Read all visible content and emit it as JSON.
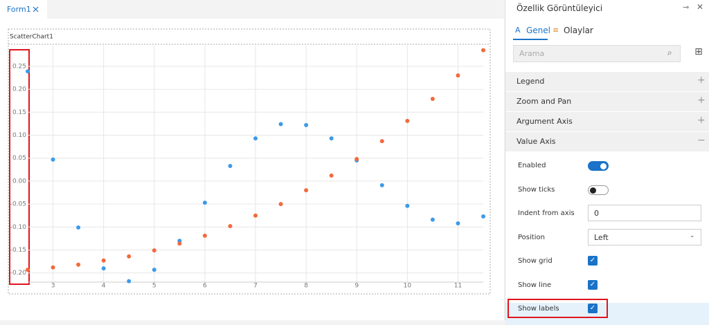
{
  "tab": "Form1",
  "chart_data": {
    "type": "scatter",
    "title": "ScatterChart1",
    "x": [
      2.5,
      3,
      3.5,
      4,
      4.5,
      5,
      5.5,
      6,
      6.5,
      7,
      7.5,
      8,
      8.5,
      9,
      9.5,
      10,
      10.5,
      11,
      11.5
    ],
    "series": [
      {
        "color": "#3d9ae8",
        "values": [
          0.239,
          0.047,
          -0.101,
          -0.19,
          -0.218,
          -0.193,
          -0.13,
          -0.047,
          0.033,
          0.093,
          0.124,
          0.122,
          0.093,
          0.045,
          -0.009,
          -0.054,
          -0.084,
          -0.092,
          -0.077
        ]
      },
      {
        "color": "#f26a3c",
        "values": [
          -0.193,
          -0.188,
          -0.182,
          -0.173,
          -0.164,
          -0.151,
          -0.136,
          -0.119,
          -0.098,
          -0.075,
          -0.05,
          -0.02,
          0.012,
          0.048,
          0.087,
          0.131,
          0.179,
          0.23,
          0.285
        ]
      }
    ],
    "xlim": [
      2.5,
      11.5
    ],
    "xticks": [
      3,
      4,
      5,
      6,
      7,
      8,
      9,
      10,
      11
    ],
    "ylim": [
      -0.22,
      0.295
    ],
    "yticks": [
      {
        "value": -0.2,
        "label": "-0.20"
      },
      -0.15,
      {
        "value": -0.1,
        "label": "-0.10"
      },
      -0.05,
      {
        "value": 0,
        "label": "0.00"
      },
      0.05,
      {
        "value": 0.1,
        "label": "0.10"
      },
      0.15,
      {
        "value": 0.2,
        "label": "0.20"
      },
      0.25
    ],
    "grid": true
  },
  "panel": {
    "title": "Özellik Görüntüleyici",
    "tabs": [
      "Genel",
      "Olaylar"
    ],
    "search_placeholder": "Arama",
    "sections": [
      {
        "label": "Legend",
        "expanded": false
      },
      {
        "label": "Zoom and Pan",
        "expanded": false
      },
      {
        "label": "Argument Axis",
        "expanded": false
      },
      {
        "label": "Value Axis",
        "expanded": true
      }
    ],
    "properties": [
      {
        "label": "Enabled",
        "control": "toggle",
        "checked": true
      },
      {
        "label": "Show ticks",
        "control": "toggle",
        "checked": false
      },
      {
        "label": "Indent from axis",
        "control": "input",
        "value": "0"
      },
      {
        "label": "Position",
        "control": "select",
        "value": "Left"
      },
      {
        "label": "Show grid",
        "control": "checkbox",
        "checked": true
      },
      {
        "label": "Show line",
        "control": "checkbox",
        "checked": true
      },
      {
        "label": "Show labels",
        "control": "checkbox",
        "checked": true,
        "selected": true
      }
    ]
  }
}
